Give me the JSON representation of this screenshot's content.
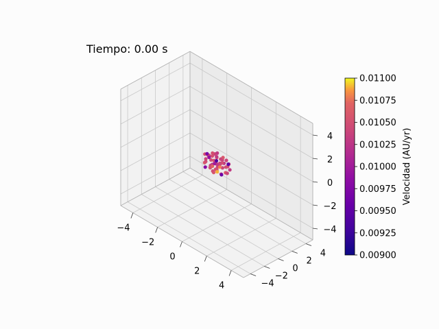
{
  "chart_data": {
    "type": "scatter",
    "projection": "3d",
    "title": "Tiempo: 0.00 s",
    "xlabel": "",
    "ylabel": "",
    "zlabel": "",
    "xlim": [
      -5,
      5
    ],
    "ylim": [
      -5,
      5
    ],
    "zlim": [
      -5,
      5
    ],
    "x_ticks": [
      "−4",
      "−2",
      "0",
      "2",
      "4"
    ],
    "y_ticks": [
      "−4",
      "−2",
      "0",
      "2",
      "4"
    ],
    "z_ticks": [
      "−4",
      "−2",
      "0",
      "2",
      "4"
    ],
    "grid": true,
    "colormap": "plasma",
    "colorbar": {
      "label": "Velocidad (AU/yr)",
      "range": [
        0.009,
        0.011
      ],
      "ticks": [
        "0.00900",
        "0.00925",
        "0.00950",
        "0.00975",
        "0.01000",
        "0.01025",
        "0.01050",
        "0.01075",
        "0.01100"
      ]
    },
    "points": [
      {
        "x": -0.8,
        "y": 0.3,
        "z": 0.2,
        "v": 0.0104
      },
      {
        "x": -0.6,
        "y": -0.2,
        "z": 0.5,
        "v": 0.0105
      },
      {
        "x": -0.3,
        "y": 0.5,
        "z": -0.3,
        "v": 0.0103
      },
      {
        "x": 0.0,
        "y": 0.0,
        "z": 0.6,
        "v": 0.0105
      },
      {
        "x": 0.3,
        "y": -0.4,
        "z": 0.1,
        "v": 0.0104
      },
      {
        "x": 0.6,
        "y": 0.2,
        "z": -0.4,
        "v": 0.0106
      },
      {
        "x": 0.8,
        "y": -0.1,
        "z": 0.3,
        "v": 0.0105
      },
      {
        "x": -0.5,
        "y": 0.6,
        "z": 0.4,
        "v": 0.0104
      },
      {
        "x": 0.2,
        "y": 0.7,
        "z": 0.0,
        "v": 0.0103
      },
      {
        "x": -0.2,
        "y": -0.6,
        "z": -0.2,
        "v": 0.0105
      },
      {
        "x": 0.5,
        "y": 0.5,
        "z": 0.5,
        "v": 0.0104
      },
      {
        "x": -0.7,
        "y": -0.5,
        "z": -0.1,
        "v": 0.0106
      },
      {
        "x": 0.7,
        "y": -0.6,
        "z": -0.2,
        "v": 0.0104
      },
      {
        "x": -0.1,
        "y": 0.2,
        "z": -0.6,
        "v": 0.0105
      },
      {
        "x": 0.1,
        "y": -0.2,
        "z": 0.8,
        "v": 0.0103
      },
      {
        "x": -0.4,
        "y": 0.1,
        "z": 0.7,
        "v": 0.0105
      },
      {
        "x": 0.4,
        "y": 0.1,
        "z": 0.6,
        "v": 0.0104
      },
      {
        "x": -0.9,
        "y": 0.0,
        "z": -0.3,
        "v": 0.0105
      },
      {
        "x": 0.9,
        "y": 0.3,
        "z": 0.0,
        "v": 0.0103
      },
      {
        "x": 0.0,
        "y": 0.9,
        "z": 0.3,
        "v": 0.0106
      },
      {
        "x": 0.0,
        "y": -0.9,
        "z": 0.2,
        "v": 0.0104
      },
      {
        "x": -0.3,
        "y": -0.3,
        "z": 0.3,
        "v": 0.0105
      },
      {
        "x": 0.3,
        "y": 0.3,
        "z": -0.2,
        "v": 0.0104
      },
      {
        "x": -0.6,
        "y": 0.4,
        "z": -0.5,
        "v": 0.0103
      },
      {
        "x": 0.6,
        "y": -0.3,
        "z": 0.6,
        "v": 0.0105
      },
      {
        "x": -0.2,
        "y": 0.8,
        "z": -0.4,
        "v": 0.0104
      },
      {
        "x": 0.2,
        "y": -0.8,
        "z": -0.3,
        "v": 0.0106
      },
      {
        "x": -0.5,
        "y": -0.7,
        "z": 0.4,
        "v": 0.0104
      },
      {
        "x": 0.5,
        "y": 0.7,
        "z": -0.1,
        "v": 0.0105
      },
      {
        "x": 0.1,
        "y": 0.4,
        "z": 0.4,
        "v": 0.0104
      },
      {
        "x": -0.4,
        "y": 0.3,
        "z": 0.0,
        "v": 0.0105
      },
      {
        "x": 0.4,
        "y": -0.5,
        "z": 0.4,
        "v": 0.0103
      },
      {
        "x": -0.7,
        "y": 0.6,
        "z": 0.1,
        "v": 0.0105
      },
      {
        "x": 0.7,
        "y": 0.5,
        "z": 0.3,
        "v": 0.0104
      },
      {
        "x": -0.1,
        "y": -0.4,
        "z": -0.5,
        "v": 0.0105
      },
      {
        "x": 0.2,
        "y": 0.1,
        "z": 0.2,
        "v": 0.0104
      },
      {
        "x": -0.8,
        "y": -0.3,
        "z": 0.5,
        "v": 0.0105
      },
      {
        "x": 0.8,
        "y": 0.1,
        "z": -0.3,
        "v": 0.0104
      },
      {
        "x": -0.3,
        "y": 0.6,
        "z": 0.6,
        "v": 0.0103
      },
      {
        "x": 0.3,
        "y": -0.7,
        "z": 0.0,
        "v": 0.0105
      },
      {
        "x": -0.6,
        "y": -0.6,
        "z": -0.4,
        "v": 0.0098
      },
      {
        "x": 0.5,
        "y": -0.2,
        "z": -0.5,
        "v": 0.0096
      },
      {
        "x": -0.2,
        "y": 0.3,
        "z": 0.1,
        "v": 0.0094
      },
      {
        "x": 0.6,
        "y": 0.6,
        "z": 0.2,
        "v": 0.0095
      },
      {
        "x": -0.9,
        "y": 0.2,
        "z": 0.3,
        "v": 0.0097
      },
      {
        "x": -0.4,
        "y": -0.4,
        "z": 0.5,
        "v": 0.0099
      },
      {
        "x": 0.1,
        "y": -0.5,
        "z": 0.3,
        "v": 0.01
      },
      {
        "x": 0.3,
        "y": -0.1,
        "z": 0.0,
        "v": 0.0108
      },
      {
        "x": 0.2,
        "y": -0.3,
        "z": -0.4,
        "v": 0.0109
      },
      {
        "x": -0.3,
        "y": -0.1,
        "z": -0.3,
        "v": 0.0107
      }
    ]
  }
}
